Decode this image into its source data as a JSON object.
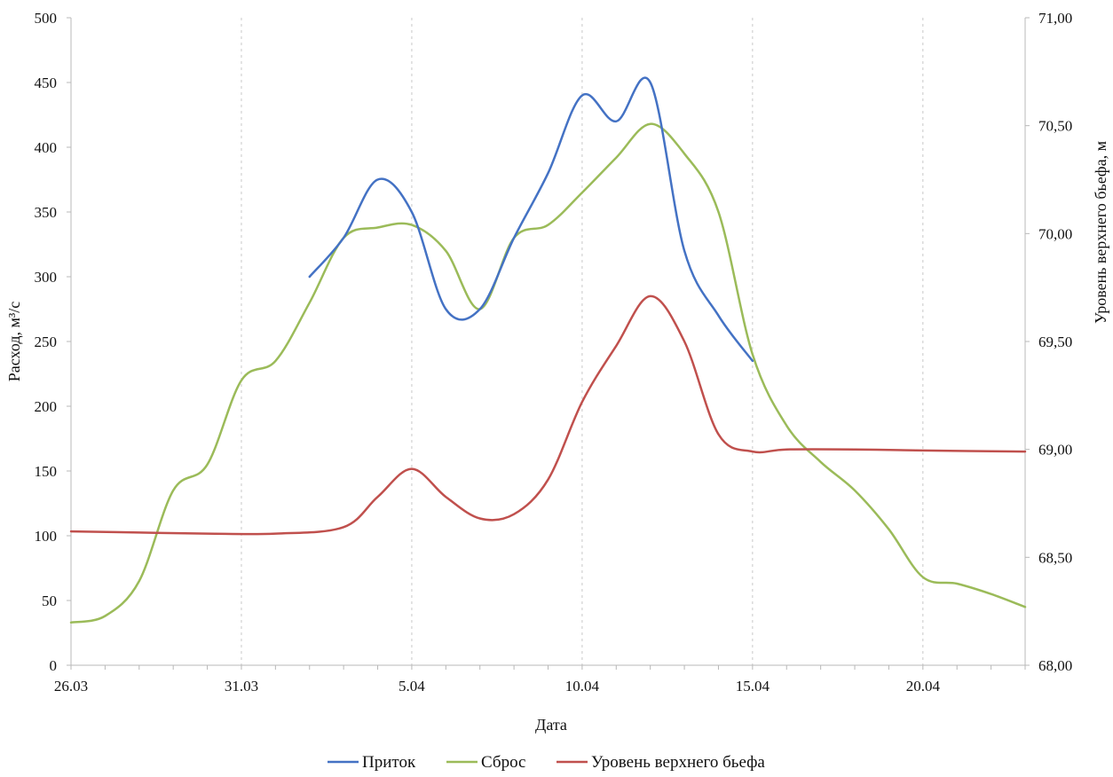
{
  "chart_data": {
    "type": "line",
    "xlabel": "Дата",
    "ylabel_left": "Расход, м³/с",
    "ylabel_right": "Уровень верхнего бьефа, м",
    "x_range": [
      "2023-03-26",
      "2023-04-23"
    ],
    "ylim_left": [
      0,
      500
    ],
    "ylim_right": [
      68.0,
      71.0
    ],
    "x_ticks": [
      {
        "date": "2023-03-26",
        "label": "26.03"
      },
      {
        "date": "2023-03-31",
        "label": "31.03"
      },
      {
        "date": "2023-04-05",
        "label": "5.04"
      },
      {
        "date": "2023-04-10",
        "label": "10.04"
      },
      {
        "date": "2023-04-15",
        "label": "15.04"
      },
      {
        "date": "2023-04-20",
        "label": "20.04"
      }
    ],
    "y_ticks_left": [
      "0",
      "50",
      "100",
      "150",
      "200",
      "250",
      "300",
      "350",
      "400",
      "450",
      "500"
    ],
    "y_ticks_right": [
      "68,00",
      "68,50",
      "69,00",
      "69,50",
      "70,00",
      "70,50",
      "71,00"
    ],
    "grid": "vertical dashed",
    "legend_position": "bottom",
    "series": [
      {
        "name": "Приток",
        "axis": "left",
        "color": "#4472C4",
        "points": [
          [
            "2023-04-02",
            300
          ],
          [
            "2023-04-03",
            330
          ],
          [
            "2023-04-04",
            375
          ],
          [
            "2023-04-05",
            350
          ],
          [
            "2023-04-06",
            275
          ],
          [
            "2023-04-07",
            275
          ],
          [
            "2023-04-08",
            330
          ],
          [
            "2023-04-09",
            380
          ],
          [
            "2023-04-10",
            440
          ],
          [
            "2023-04-11",
            420
          ],
          [
            "2023-04-12",
            450
          ],
          [
            "2023-04-13",
            320
          ],
          [
            "2023-04-14",
            270
          ],
          [
            "2023-04-15",
            235
          ]
        ]
      },
      {
        "name": "Сброс",
        "axis": "left",
        "color": "#9BBB59",
        "points": [
          [
            "2023-03-26",
            33
          ],
          [
            "2023-03-27",
            38
          ],
          [
            "2023-03-28",
            65
          ],
          [
            "2023-03-29",
            135
          ],
          [
            "2023-03-30",
            155
          ],
          [
            "2023-03-31",
            220
          ],
          [
            "2023-04-01",
            235
          ],
          [
            "2023-04-02",
            280
          ],
          [
            "2023-04-03",
            330
          ],
          [
            "2023-04-04",
            338
          ],
          [
            "2023-04-05",
            340
          ],
          [
            "2023-04-06",
            320
          ],
          [
            "2023-04-07",
            275
          ],
          [
            "2023-04-08",
            330
          ],
          [
            "2023-04-09",
            340
          ],
          [
            "2023-04-10",
            365
          ],
          [
            "2023-04-11",
            392
          ],
          [
            "2023-04-12",
            418
          ],
          [
            "2023-04-13",
            395
          ],
          [
            "2023-04-14",
            350
          ],
          [
            "2023-04-15",
            240
          ],
          [
            "2023-04-16",
            185
          ],
          [
            "2023-04-17",
            157
          ],
          [
            "2023-04-18",
            135
          ],
          [
            "2023-04-19",
            105
          ],
          [
            "2023-04-20",
            68
          ],
          [
            "2023-04-21",
            63
          ],
          [
            "2023-04-22",
            55
          ],
          [
            "2023-04-23",
            45
          ]
        ]
      },
      {
        "name": "Уровень верхнего бьефа",
        "axis": "right",
        "color": "#C0504D",
        "points": [
          [
            "2023-03-26",
            68.62
          ],
          [
            "2023-03-28",
            68.615
          ],
          [
            "2023-03-30",
            68.61
          ],
          [
            "2023-04-01",
            68.61
          ],
          [
            "2023-04-03",
            68.64
          ],
          [
            "2023-04-04",
            68.78
          ],
          [
            "2023-04-05",
            68.91
          ],
          [
            "2023-04-06",
            68.78
          ],
          [
            "2023-04-07",
            68.68
          ],
          [
            "2023-04-08",
            68.7
          ],
          [
            "2023-04-09",
            68.86
          ],
          [
            "2023-04-10",
            69.22
          ],
          [
            "2023-04-11",
            69.48
          ],
          [
            "2023-04-12",
            69.71
          ],
          [
            "2023-04-13",
            69.5
          ],
          [
            "2023-04-14",
            69.07
          ],
          [
            "2023-04-15",
            68.99
          ],
          [
            "2023-04-16",
            69.0
          ],
          [
            "2023-04-18",
            69.0
          ],
          [
            "2023-04-20",
            68.995
          ],
          [
            "2023-04-23",
            68.99
          ]
        ]
      }
    ]
  }
}
